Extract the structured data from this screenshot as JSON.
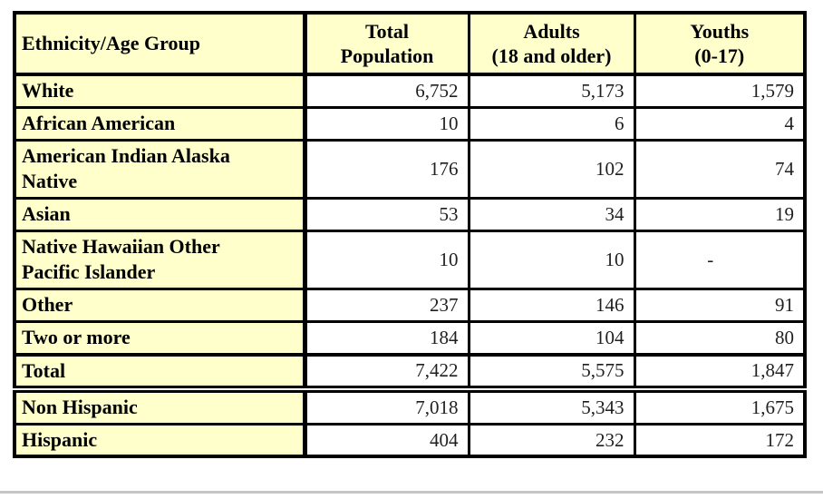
{
  "table": {
    "columns": [
      {
        "title": "Ethnicity/Age Group",
        "subtitle": ""
      },
      {
        "title": "Total",
        "subtitle": "Population"
      },
      {
        "title": "Adults",
        "subtitle": "(18 and older)"
      },
      {
        "title": "Youths",
        "subtitle": "(0-17)"
      }
    ],
    "rows": [
      {
        "label": "White",
        "total": "6,752",
        "adults": "5,173",
        "youths": "1,579"
      },
      {
        "label": "African American",
        "total": "10",
        "adults": "6",
        "youths": "4"
      },
      {
        "label": "American Indian Alaska\nNative",
        "total": "176",
        "adults": "102",
        "youths": "74"
      },
      {
        "label": "Asian",
        "total": "53",
        "adults": "34",
        "youths": "19"
      },
      {
        "label": "Native Hawaiian Other\nPacific Islander",
        "total": "10",
        "adults": "10",
        "youths": "-"
      },
      {
        "label": "Other",
        "total": "237",
        "adults": "146",
        "youths": "91"
      },
      {
        "label": "Two or more",
        "total": "184",
        "adults": "104",
        "youths": "80"
      },
      {
        "label": "Total",
        "total": "7,422",
        "adults": "5,575",
        "youths": "1,847"
      },
      {
        "label": "Non Hispanic",
        "total": "7,018",
        "adults": "5,343",
        "youths": "1,675"
      },
      {
        "label": "Hispanic",
        "total": "404",
        "adults": "232",
        "youths": "172"
      }
    ],
    "colors": {
      "label_background": "#ffffcc",
      "border": "#000000",
      "number_text": "#1f1f1f",
      "bottom_rule": "#c6c6c6"
    }
  }
}
